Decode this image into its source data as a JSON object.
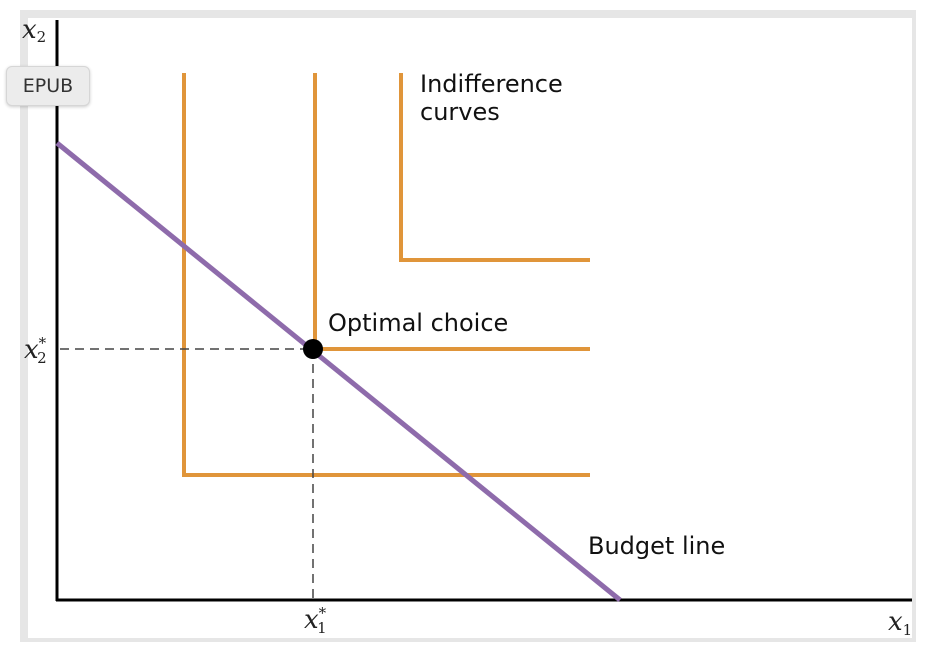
{
  "labels": {
    "y_axis": {
      "base": "x",
      "sub": "2"
    },
    "x_axis": {
      "base": "x",
      "sub": "1"
    },
    "x2_star": {
      "base": "x",
      "sup": "*",
      "sub": "2"
    },
    "x1_star": {
      "base": "x",
      "sup": "*",
      "sub": "1"
    },
    "indifference_curves": [
      "Indifference",
      "curves"
    ],
    "optimal_choice": "Optimal choice",
    "budget_line": "Budget line"
  },
  "button": {
    "label": "EPUB"
  }
}
